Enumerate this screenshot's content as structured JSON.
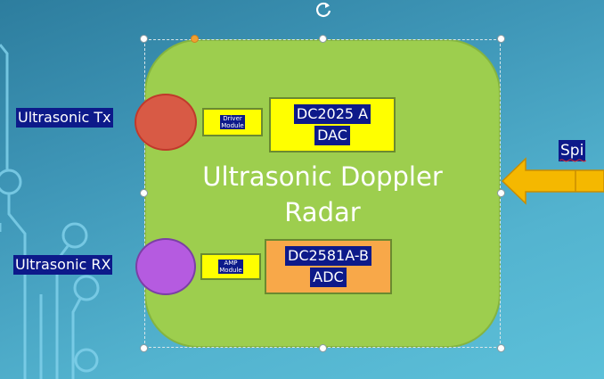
{
  "diagram": {
    "title_line1": "Ultrasonic Doppler",
    "title_line2": "Radar",
    "tx_label": "Ultrasonic Tx",
    "rx_label": "Ultrasonic RX",
    "driver_line1": "Driver",
    "driver_line2": "Module",
    "amp_line1": "AMP",
    "amp_line2": "Module",
    "dac_line1": "DC2025 A",
    "dac_line2": "DAC",
    "adc_line1": "DC2581A-B",
    "adc_line2": "ADC",
    "spi_label": "Spi"
  },
  "colors": {
    "shape_fill": "#9dce4e",
    "tx_fill": "#d85a45",
    "rx_fill": "#b55be0",
    "yellow_block": "#ffff00",
    "orange_block": "#f8a849",
    "arrow_fill": "#f5b800",
    "label_bg": "#0d1a8a"
  },
  "icons": {
    "rotate": "rotate-handle-icon",
    "arrow": "arrow-left-icon"
  }
}
